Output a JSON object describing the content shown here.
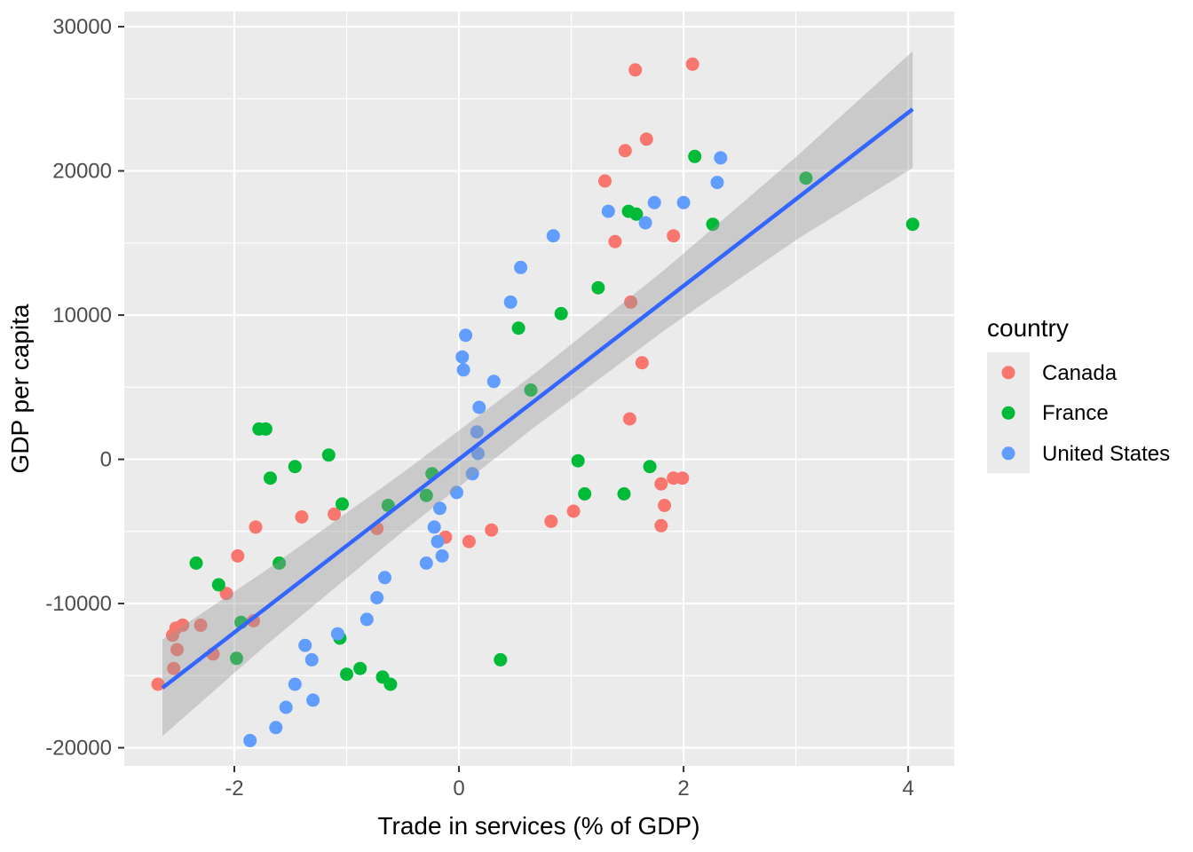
{
  "chart_data": {
    "type": "scatter",
    "xlabel": "Trade in services (% of GDP)",
    "ylabel": "GDP per capita",
    "xlim": [
      -2.98,
      4.41
    ],
    "ylim": [
      -21260,
      31050
    ],
    "x_major_ticks": [
      -2,
      0,
      2,
      4
    ],
    "x_minor_ticks": [
      -1,
      1,
      3
    ],
    "y_major_ticks": [
      -20000,
      -10000,
      0,
      10000,
      20000,
      30000
    ],
    "y_minor_ticks": [
      -15000,
      -5000,
      5000,
      15000,
      25000
    ],
    "grid": true,
    "colors": {
      "panel_background": "#ebebeb",
      "grid_major": "#ffffff",
      "grid_minor": "#ffffff",
      "tick_mark": "#333333",
      "tick_label": "#4d4d4d",
      "axis_title": "#000000",
      "legend_key_background": "#ebebeb"
    },
    "legend": {
      "title": "country",
      "position": "right"
    },
    "series": [
      {
        "name": "Canada",
        "color": "#f8766d",
        "points": [
          [
            1.57,
            27000
          ],
          [
            2.08,
            27400
          ],
          [
            1.67,
            22200
          ],
          [
            1.48,
            21400
          ],
          [
            1.3,
            19300
          ],
          [
            1.91,
            15500
          ],
          [
            1.39,
            15100
          ],
          [
            1.53,
            10900
          ],
          [
            1.63,
            6700
          ],
          [
            1.52,
            2800
          ],
          [
            1.91,
            -1300
          ],
          [
            1.99,
            -1300
          ],
          [
            1.8,
            -1700
          ],
          [
            1.83,
            -3200
          ],
          [
            1.8,
            -4600
          ],
          [
            1.02,
            -3600
          ],
          [
            0.82,
            -4300
          ],
          [
            0.29,
            -4900
          ],
          [
            0.09,
            -5700
          ],
          [
            -0.12,
            -5400
          ],
          [
            -0.73,
            -4800
          ],
          [
            -1.11,
            -3800
          ],
          [
            -1.4,
            -4000
          ],
          [
            -1.81,
            -4700
          ],
          [
            -1.97,
            -6700
          ],
          [
            -2.07,
            -9300
          ],
          [
            -1.83,
            -11200
          ],
          [
            -2.3,
            -11500
          ],
          [
            -2.46,
            -11500
          ],
          [
            -2.52,
            -11700
          ],
          [
            -2.55,
            -12200
          ],
          [
            -2.51,
            -13200
          ],
          [
            -2.19,
            -13500
          ],
          [
            -2.54,
            -14500
          ],
          [
            -2.68,
            -15600
          ]
        ]
      },
      {
        "name": "France",
        "color": "#00ba38",
        "points": [
          [
            4.04,
            16300
          ],
          [
            3.09,
            19500
          ],
          [
            2.26,
            16300
          ],
          [
            2.1,
            21000
          ],
          [
            1.58,
            17000
          ],
          [
            1.51,
            17200
          ],
          [
            1.24,
            11900
          ],
          [
            0.91,
            10100
          ],
          [
            0.53,
            9100
          ],
          [
            0.64,
            4800
          ],
          [
            1.06,
            -100
          ],
          [
            1.7,
            -500
          ],
          [
            1.12,
            -2400
          ],
          [
            1.47,
            -2400
          ],
          [
            0.37,
            -13900
          ],
          [
            -0.24,
            -1000
          ],
          [
            -0.29,
            -2500
          ],
          [
            -0.63,
            -3200
          ],
          [
            -1.04,
            -3100
          ],
          [
            -1.16,
            300
          ],
          [
            -1.46,
            -500
          ],
          [
            -1.68,
            -1300
          ],
          [
            -1.78,
            2100
          ],
          [
            -1.72,
            2100
          ],
          [
            -2.34,
            -7200
          ],
          [
            -1.6,
            -7200
          ],
          [
            -2.14,
            -8700
          ],
          [
            -1.94,
            -11300
          ],
          [
            -1.06,
            -12400
          ],
          [
            -1.98,
            -13800
          ],
          [
            -1.0,
            -14900
          ],
          [
            -0.88,
            -14500
          ],
          [
            -0.68,
            -15100
          ],
          [
            -0.61,
            -15600
          ]
        ]
      },
      {
        "name": "United States",
        "color": "#619cff",
        "points": [
          [
            2.33,
            20900
          ],
          [
            2.3,
            19200
          ],
          [
            2.0,
            17800
          ],
          [
            1.74,
            17800
          ],
          [
            1.66,
            16400
          ],
          [
            1.33,
            17200
          ],
          [
            0.84,
            15500
          ],
          [
            0.55,
            13300
          ],
          [
            0.46,
            10900
          ],
          [
            0.06,
            8600
          ],
          [
            0.03,
            7100
          ],
          [
            0.04,
            6200
          ],
          [
            0.31,
            5400
          ],
          [
            0.18,
            3600
          ],
          [
            0.16,
            1900
          ],
          [
            0.17,
            400
          ],
          [
            0.12,
            -1000
          ],
          [
            -0.02,
            -2300
          ],
          [
            -0.17,
            -3400
          ],
          [
            -0.22,
            -4700
          ],
          [
            -0.19,
            -5700
          ],
          [
            -0.15,
            -6700
          ],
          [
            -0.29,
            -7200
          ],
          [
            -0.66,
            -8200
          ],
          [
            -0.73,
            -9600
          ],
          [
            -0.82,
            -11100
          ],
          [
            -1.08,
            -12100
          ],
          [
            -1.37,
            -12900
          ],
          [
            -1.31,
            -13900
          ],
          [
            -1.46,
            -15600
          ],
          [
            -1.3,
            -16700
          ],
          [
            -1.54,
            -17200
          ],
          [
            -1.63,
            -18600
          ],
          [
            -1.86,
            -19500
          ]
        ]
      }
    ],
    "smooth": {
      "line_color": "#3366ff",
      "line": [
        [
          -2.64,
          -15850
        ],
        [
          4.04,
          24280
        ]
      ],
      "ribbon_color": "#999999",
      "ribbon_opacity": 0.4,
      "ribbon_upper": [
        [
          -2.64,
          -12500
        ],
        [
          -1.72,
          -7700
        ],
        [
          -0.53,
          -1100
        ],
        [
          0.65,
          5800
        ],
        [
          1.84,
          13200
        ],
        [
          3.02,
          21100
        ],
        [
          4.04,
          28300
        ]
      ],
      "ribbon_lower": [
        [
          -2.64,
          -19200
        ],
        [
          -1.72,
          -12900
        ],
        [
          -0.53,
          -5200
        ],
        [
          0.65,
          2100
        ],
        [
          1.84,
          9000
        ],
        [
          3.02,
          15300
        ],
        [
          4.04,
          20200
        ]
      ]
    }
  }
}
